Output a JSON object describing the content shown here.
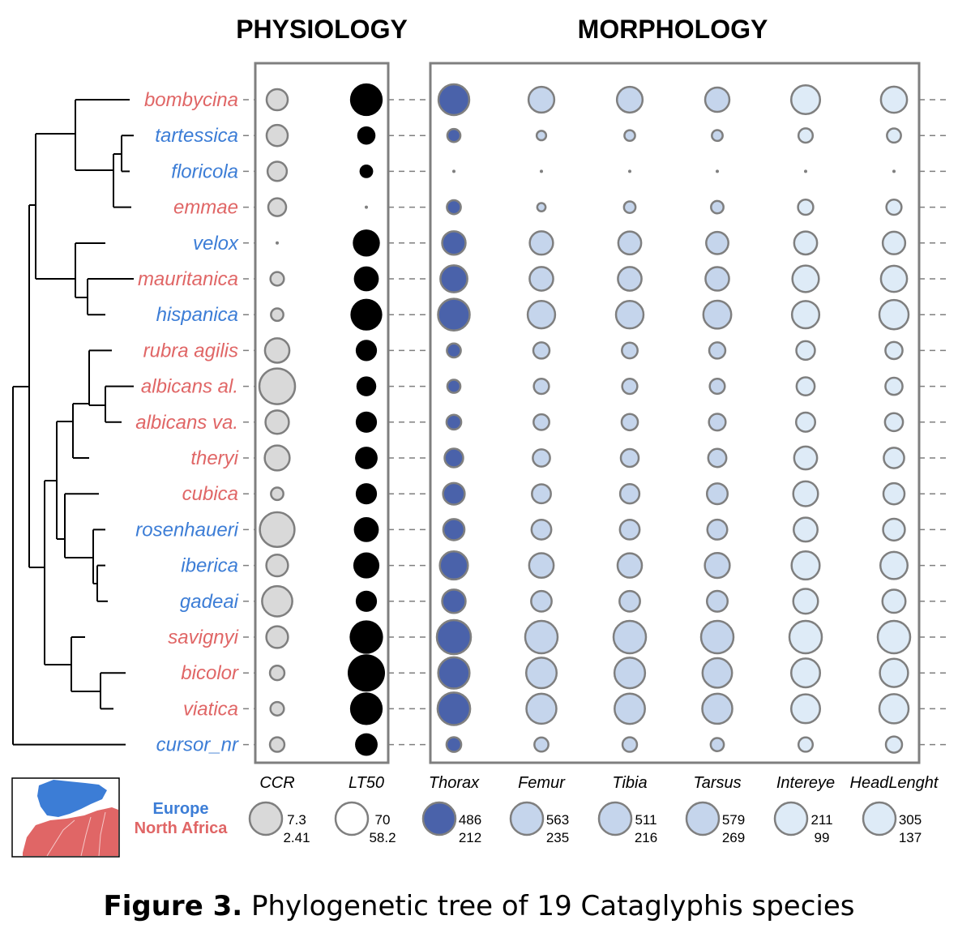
{
  "chart_data": {
    "type": "bubble-matrix",
    "header_left": "PHYSIOLOGY",
    "header_right": "MORPHOLOGY",
    "species": [
      {
        "name": "bombycina",
        "region": "North Africa"
      },
      {
        "name": "tartessica",
        "region": "Europe"
      },
      {
        "name": "floricola",
        "region": "Europe"
      },
      {
        "name": "emmae",
        "region": "North Africa"
      },
      {
        "name": "velox",
        "region": "Europe"
      },
      {
        "name": "mauritanica",
        "region": "North Africa"
      },
      {
        "name": "hispanica",
        "region": "Europe"
      },
      {
        "name": "rubra agilis",
        "region": "North Africa"
      },
      {
        "name": "albicans al.",
        "region": "North Africa"
      },
      {
        "name": "albicans va.",
        "region": "North Africa"
      },
      {
        "name": "theryi",
        "region": "North Africa"
      },
      {
        "name": "cubica",
        "region": "North Africa"
      },
      {
        "name": "rosenhaueri",
        "region": "Europe"
      },
      {
        "name": "iberica",
        "region": "Europe"
      },
      {
        "name": "gadeai",
        "region": "Europe"
      },
      {
        "name": "savignyi",
        "region": "North Africa"
      },
      {
        "name": "bicolor",
        "region": "North Africa"
      },
      {
        "name": "viatica",
        "region": "North Africa"
      },
      {
        "name": "cursor_nr",
        "region": "Europe"
      }
    ],
    "variables": [
      {
        "name": "CCR",
        "group": "physiology",
        "max": 7.3,
        "min": 2.41,
        "fill": "#d9d9d9",
        "stroke": "#7f7f7f",
        "values": [
          3.9,
          3.9,
          3.6,
          3.4,
          2.41,
          2.9,
          2.8,
          4.5,
          7.3,
          4.3,
          4.6,
          2.8,
          7.0,
          4.0,
          5.8,
          4.0,
          3.0,
          2.9,
          3.0
        ]
      },
      {
        "name": "LT50",
        "group": "physiology",
        "max": 70,
        "min": 58.2,
        "fill": "#000000",
        "stroke": "#000000",
        "values": [
          67.0,
          60.5,
          59.3,
          58.2,
          64.0,
          63.0,
          66.5,
          61.5,
          61.0,
          61.5,
          62.0,
          61.5,
          63.0,
          63.5,
          61.5,
          67.5,
          70.0,
          67.0,
          62.0
        ]
      },
      {
        "name": "Thorax",
        "group": "morphology",
        "max": 486,
        "min": 212,
        "fill": "#4a62aa",
        "stroke": "#7f7f7f",
        "values": [
          430,
          240,
          212,
          245,
          330,
          375,
          445,
          245,
          240,
          250,
          280,
          310,
          305,
          390,
          330,
          486,
          440,
          460,
          250
        ]
      },
      {
        "name": "Femur",
        "group": "morphology",
        "max": 563,
        "min": 235,
        "fill": "#c5d5ec",
        "stroke": "#7f7f7f",
        "values": [
          430,
          250,
          235,
          245,
          390,
          395,
          460,
          300,
          290,
          295,
          310,
          330,
          340,
          410,
          350,
          563,
          520,
          510,
          280
        ]
      },
      {
        "name": "Tibia",
        "group": "morphology",
        "max": 511,
        "min": 216,
        "fill": "#c5d5ec",
        "stroke": "#7f7f7f",
        "values": [
          390,
          235,
          216,
          240,
          350,
          360,
          420,
          270,
          265,
          275,
          290,
          305,
          310,
          370,
          320,
          511,
          475,
          470,
          260
        ]
      },
      {
        "name": "Tarsus",
        "group": "morphology",
        "max": 579,
        "min": 269,
        "fill": "#c5d5ec",
        "stroke": "#7f7f7f",
        "values": [
          430,
          290,
          269,
          300,
          400,
          420,
          490,
          330,
          320,
          335,
          350,
          380,
          370,
          440,
          380,
          579,
          520,
          530,
          305
        ]
      },
      {
        "name": "Intereye",
        "group": "morphology",
        "max": 211,
        "min": 99,
        "fill": "#deebf7",
        "stroke": "#7f7f7f",
        "values": [
          185,
          115,
          99,
          118,
          150,
          170,
          175,
          130,
          128,
          132,
          150,
          160,
          155,
          180,
          160,
          211,
          185,
          185,
          115
        ]
      },
      {
        "name": "HeadLenght",
        "group": "morphology",
        "max": 305,
        "min": 137,
        "fill": "#deebf7",
        "stroke": "#7f7f7f",
        "values": [
          240,
          160,
          137,
          165,
          210,
          240,
          270,
          175,
          175,
          180,
          195,
          200,
          205,
          250,
          215,
          305,
          260,
          270,
          170
        ]
      }
    ],
    "legend": {
      "europe_label": "Europe",
      "north_africa_label": "North Africa"
    },
    "colors": {
      "europe": "#3c7dd6",
      "north_africa": "#e06666",
      "box_stroke": "#7f7f7f"
    }
  },
  "caption": {
    "bold": "Figure 3.",
    "text": "Phylogenetic tree of 19 Cataglyphis species"
  }
}
